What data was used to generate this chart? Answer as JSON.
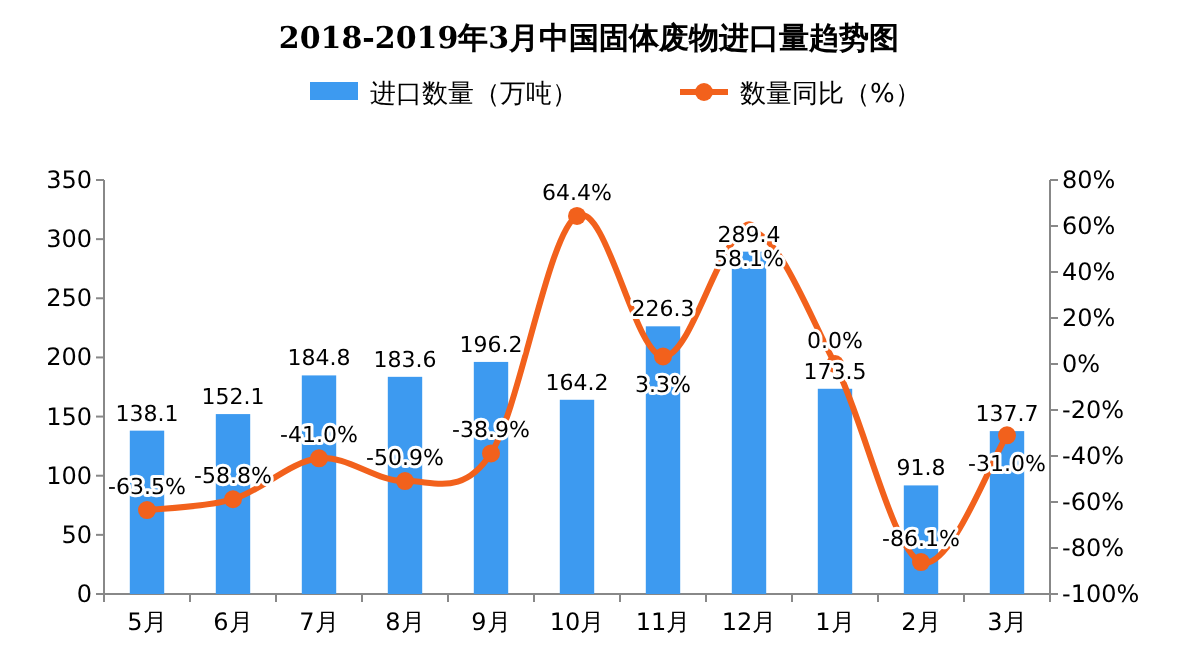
{
  "chart_data": {
    "type": "bar",
    "title": "2018-2019年3月中国固体废物进口量趋势图",
    "categories": [
      "5月",
      "6月",
      "7月",
      "8月",
      "9月",
      "10月",
      "11月",
      "12月",
      "1月",
      "2月",
      "3月"
    ],
    "series": [
      {
        "name": "进口数量（万吨）",
        "color": "#3d9af0",
        "values": [
          138.1,
          152.1,
          184.8,
          183.6,
          196.2,
          164.2,
          226.3,
          289.4,
          173.5,
          91.8,
          137.7
        ],
        "value_labels": [
          "138.1",
          "152.1",
          "184.8",
          "183.6",
          "196.2",
          "164.2",
          "226.3",
          "289.4",
          "173.5",
          "91.8",
          "137.7"
        ]
      },
      {
        "name": "数量同比（%）",
        "type": "line",
        "axis": "y2",
        "color": "#f2611c",
        "marker": "circle",
        "values": [
          -63.5,
          -58.8,
          -41.0,
          -50.9,
          -38.9,
          64.4,
          3.3,
          58.1,
          0.0,
          -86.1,
          -31.0
        ],
        "value_labels": [
          "-63.5%",
          "-58.8%",
          "-41.0%",
          "-50.9%",
          "-38.9%",
          "64.4%",
          "3.3%",
          "58.1%",
          "0.0%",
          "-86.1%",
          "-31.0%"
        ]
      }
    ],
    "ylim": [
      0,
      350
    ],
    "yticks": [
      0,
      50,
      100,
      150,
      200,
      250,
      300,
      350
    ],
    "y2lim": [
      -100,
      80
    ],
    "y2ticks": [
      {
        "value": -100,
        "label": "-100%"
      },
      {
        "value": -80,
        "label": "-80%"
      },
      {
        "value": -60,
        "label": "-60%"
      },
      {
        "value": -40,
        "label": "-40%"
      },
      {
        "value": -20,
        "label": "-20%"
      },
      {
        "value": 0,
        "label": "0%"
      },
      {
        "value": 20,
        "label": "20%"
      },
      {
        "value": 40,
        "label": "40%"
      },
      {
        "value": 60,
        "label": "60%"
      },
      {
        "value": 80,
        "label": "80%"
      }
    ],
    "legend": "top",
    "grid": false
  }
}
